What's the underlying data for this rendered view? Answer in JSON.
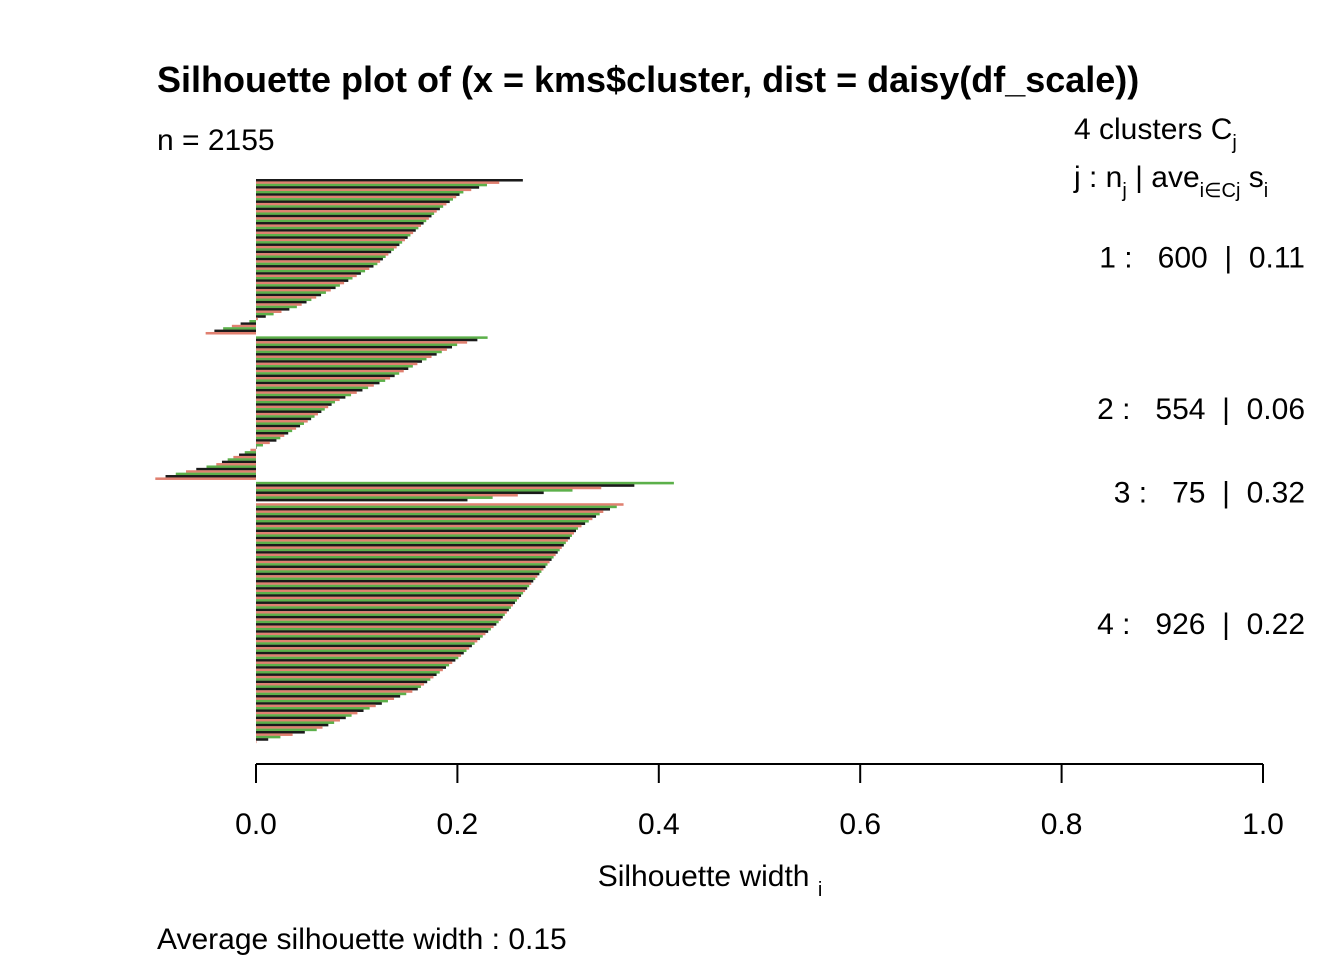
{
  "chart_data": {
    "type": "bar",
    "orientation": "horizontal",
    "title": "Silhouette plot of (x = kms$cluster, dist = daisy(df_scale))",
    "n_label": "n = 2155",
    "xlabel": "Silhouette width",
    "xlabel_sub": "i",
    "xlim": [
      0,
      1
    ],
    "x_ticks": [
      0,
      0.2,
      0.4,
      0.6,
      0.8,
      1.0
    ],
    "x_tick_labels": [
      "0.0",
      "0.2",
      "0.4",
      "0.6",
      "0.8",
      "1.0"
    ],
    "legend_header": {
      "line1": "4  clusters  C",
      "line1_sub": "j",
      "line2_j": "j :  n",
      "line2_nsub": "j",
      "line2_ave": " | ave",
      "line2_avesub": "i∈Cj",
      "line2_s": "  s",
      "line2_ssub": "i"
    },
    "clusters": [
      {
        "label": "1 :   600  |  0.11",
        "n": 600,
        "avg": 0.11,
        "max": 0.265,
        "min": -0.05,
        "neg_frac": 0.09,
        "profile": [
          [
            0,
            0.265
          ],
          [
            0.02,
            0.235
          ],
          [
            0.08,
            0.205
          ],
          [
            0.2,
            0.18
          ],
          [
            0.35,
            0.155
          ],
          [
            0.55,
            0.12
          ],
          [
            0.7,
            0.08
          ],
          [
            0.83,
            0.04
          ],
          [
            0.91,
            0.0
          ],
          [
            1.0,
            -0.05
          ]
        ]
      },
      {
        "label": "2 :   554  |  0.06",
        "n": 554,
        "avg": 0.06,
        "max": 0.23,
        "min": -0.1,
        "neg_frac": 0.22,
        "profile": [
          [
            0,
            0.23
          ],
          [
            0.05,
            0.2
          ],
          [
            0.15,
            0.17
          ],
          [
            0.3,
            0.13
          ],
          [
            0.45,
            0.08
          ],
          [
            0.6,
            0.05
          ],
          [
            0.73,
            0.02
          ],
          [
            0.78,
            0.0
          ],
          [
            0.9,
            -0.04
          ],
          [
            1.0,
            -0.1
          ]
        ]
      },
      {
        "label": "3 :   75  |  0.32",
        "n": 75,
        "avg": 0.32,
        "max": 0.415,
        "min": 0.21,
        "neg_frac": 0,
        "profile": [
          [
            0,
            0.415
          ],
          [
            0.2,
            0.36
          ],
          [
            0.6,
            0.28
          ],
          [
            1.0,
            0.21
          ]
        ]
      },
      {
        "label": "4 :   926  |  0.22",
        "n": 926,
        "avg": 0.22,
        "max": 0.365,
        "min": 0.0,
        "neg_frac": 0,
        "profile": [
          [
            0,
            0.365
          ],
          [
            0.03,
            0.345
          ],
          [
            0.1,
            0.32
          ],
          [
            0.3,
            0.28
          ],
          [
            0.5,
            0.24
          ],
          [
            0.65,
            0.2
          ],
          [
            0.78,
            0.16
          ],
          [
            0.88,
            0.1
          ],
          [
            0.95,
            0.06
          ],
          [
            1.0,
            0.0
          ]
        ]
      }
    ],
    "bar_colors": [
      "#1a1a1a",
      "#e08070",
      "#5cb04a"
    ],
    "footer": "Average silhouette width :  0.15",
    "grid": false,
    "legend_position": "right"
  }
}
